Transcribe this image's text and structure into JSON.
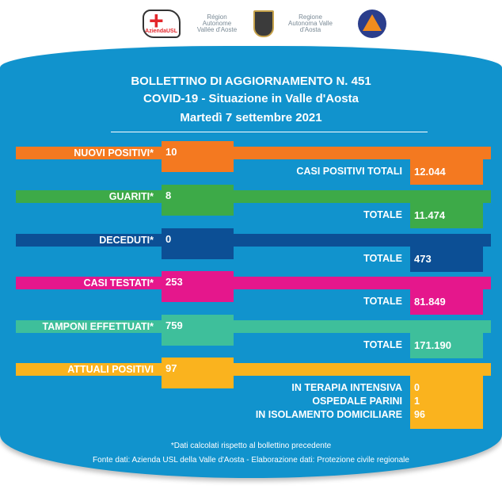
{
  "logos": {
    "usl": "AziendaUSL",
    "region_fr": "Région Autonome Vallée d'Aoste",
    "region_it": "Regione Autonoma Valle d'Aosta"
  },
  "header": {
    "line1": "BOLLETTINO DI AGGIORNAMENTO N. 451",
    "line2": "COVID-19 - Situazione in Valle d'Aosta",
    "line3": "Martedì 7 settembre 2021"
  },
  "colors": {
    "background": "#1193cd",
    "orange": "#f47920",
    "green": "#3daa48",
    "navy": "#0c4f95",
    "pink": "#e5178c",
    "teal": "#3ebf9b",
    "yellow": "#fab31e"
  },
  "rows": [
    {
      "label": "NUOVI POSITIVI*",
      "value": "10",
      "total_label": "CASI POSITIVI TOTALI",
      "total": "12.044"
    },
    {
      "label": "GUARITI*",
      "value": "8",
      "total_label": "TOTALE",
      "total": "11.474"
    },
    {
      "label": "DECEDUTI*",
      "value": "0",
      "total_label": "TOTALE",
      "total": "473"
    },
    {
      "label": "CASI TESTATI*",
      "value": "253",
      "total_label": "TOTALE",
      "total": "81.849"
    },
    {
      "label": "TAMPONI EFFETTUATI*",
      "value": "759",
      "total_label": "TOTALE",
      "total": "171.190"
    }
  ],
  "attuali": {
    "label": "ATTUALI POSITIVI",
    "value": "97",
    "details": [
      {
        "label": "IN TERAPIA INTENSIVA",
        "value": "0"
      },
      {
        "label": "OSPEDALE PARINI",
        "value": "1"
      },
      {
        "label": "IN ISOLAMENTO DOMICILIARE",
        "value": "96"
      }
    ]
  },
  "footer": {
    "note": "*Dati calcolati rispetto al bollettino precedente",
    "source": "Fonte dati: Azienda USL della Valle d'Aosta - Elaborazione dati: Protezione civile regionale"
  }
}
